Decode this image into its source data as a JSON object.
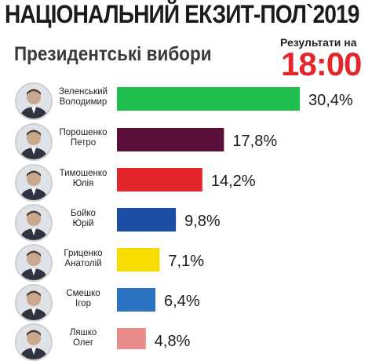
{
  "header": {
    "title": "НАЦІОНАЛЬНИЙ ЕКЗИТ-ПОЛ`2019",
    "subtitle": "Президентські вибори",
    "results_label": "Результати на",
    "results_time": "18:00"
  },
  "chart_data": {
    "type": "bar",
    "orientation": "horizontal",
    "title": "НАЦІОНАЛЬНИЙ ЕКЗИТ-ПОЛ`2019",
    "subtitle": "Президентські вибори",
    "unit": "%",
    "xlim": [
      0,
      30.4
    ],
    "categories": [
      "Зеленський Володимир",
      "Порошенко Петро",
      "Тимошенко Юлія",
      "Бойко Юрій",
      "Гриценко Анатолій",
      "Смешко Ігор",
      "Ляшко Олег"
    ],
    "values": [
      30.4,
      17.8,
      14.2,
      9.8,
      7.1,
      6.4,
      4.8
    ],
    "value_labels": [
      "30,4%",
      "17,8%",
      "14,2%",
      "9,8%",
      "7,1%",
      "6,4%",
      "4,8%"
    ],
    "colors": [
      "#1fbf4f",
      "#5b0f3b",
      "#e3262b",
      "#1c4ea5",
      "#f6dc00",
      "#2a73c2",
      "#e88b8b"
    ]
  },
  "candidates": [
    {
      "surname": "Зеленський",
      "firstname": "Володимир",
      "label": "30,4%",
      "color": "#1fbf4f",
      "avatar": "portrait-icon"
    },
    {
      "surname": "Порошенко",
      "firstname": "Петро",
      "label": "17,8%",
      "color": "#5b0f3b",
      "avatar": "portrait-icon"
    },
    {
      "surname": "Тимошенко",
      "firstname": "Юлія",
      "label": "14,2%",
      "color": "#e3262b",
      "avatar": "portrait-icon"
    },
    {
      "surname": "Бойко",
      "firstname": "Юрій",
      "label": "9,8%",
      "color": "#1c4ea5",
      "avatar": "portrait-icon"
    },
    {
      "surname": "Гриценко",
      "firstname": "Анатолій",
      "label": "7,1%",
      "color": "#f6dc00",
      "avatar": "portrait-icon"
    },
    {
      "surname": "Смешко",
      "firstname": "Ігор",
      "label": "6,4%",
      "color": "#2a73c2",
      "avatar": "portrait-icon"
    },
    {
      "surname": "Ляшко",
      "firstname": "Олег",
      "label": "4,8%",
      "color": "#e88b8b",
      "avatar": "portrait-icon"
    }
  ]
}
